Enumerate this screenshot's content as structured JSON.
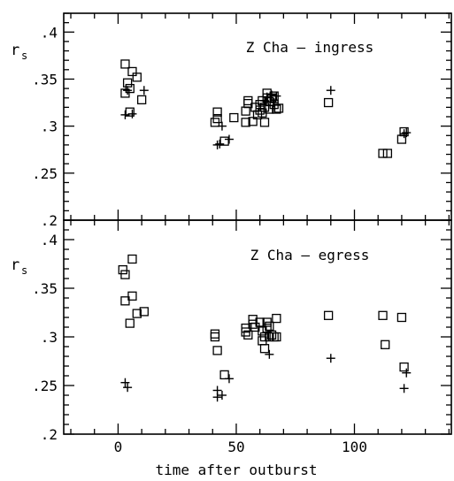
{
  "chart_data": {
    "type": "scatter",
    "xlabel": "time after outburst",
    "x_ticks": [
      "0",
      "50",
      "100"
    ],
    "xlim": [
      -23,
      141
    ],
    "shared_x": true,
    "panels": [
      {
        "title": "Z Cha – ingress",
        "ylabel": "r",
        "ylabel_sub": "s",
        "ylim": [
          0.2,
          0.42
        ],
        "y_ticks": [
          ".2",
          ".25",
          ".3",
          ".35",
          ".4"
        ],
        "series": [
          {
            "marker": "square",
            "points": [
              [
                3,
                0.366
              ],
              [
                3,
                0.335
              ],
              [
                4,
                0.346
              ],
              [
                5,
                0.315
              ],
              [
                5,
                0.34
              ],
              [
                6,
                0.358
              ],
              [
                8,
                0.352
              ],
              [
                10,
                0.328
              ],
              [
                41,
                0.304
              ],
              [
                42,
                0.315
              ],
              [
                42,
                0.308
              ],
              [
                45,
                0.284
              ],
              [
                49,
                0.309
              ],
              [
                54,
                0.304
              ],
              [
                54,
                0.316
              ],
              [
                55,
                0.324
              ],
              [
                55,
                0.327
              ],
              [
                57,
                0.305
              ],
              [
                58,
                0.32
              ],
              [
                59,
                0.312
              ],
              [
                60,
                0.317
              ],
              [
                60,
                0.323
              ],
              [
                61,
                0.314
              ],
              [
                61,
                0.327
              ],
              [
                62,
                0.304
              ],
              [
                62,
                0.32
              ],
              [
                63,
                0.33
              ],
              [
                63,
                0.335
              ],
              [
                64,
                0.318
              ],
              [
                64,
                0.326
              ],
              [
                65,
                0.33
              ],
              [
                66,
                0.323
              ],
              [
                66,
                0.332
              ],
              [
                67,
                0.318
              ],
              [
                68,
                0.319
              ],
              [
                89,
                0.325
              ],
              [
                112,
                0.271
              ],
              [
                114,
                0.271
              ],
              [
                120,
                0.286
              ],
              [
                121,
                0.294
              ]
            ]
          },
          {
            "marker": "plus",
            "points": [
              [
                3,
                0.312
              ],
              [
                4,
                0.338
              ],
              [
                6,
                0.313
              ],
              [
                11,
                0.338
              ],
              [
                42,
                0.28
              ],
              [
                43,
                0.281
              ],
              [
                44,
                0.3
              ],
              [
                47,
                0.286
              ],
              [
                62,
                0.327
              ],
              [
                63,
                0.331
              ],
              [
                65,
                0.333
              ],
              [
                66,
                0.325
              ],
              [
                67,
                0.332
              ],
              [
                90,
                0.338
              ],
              [
                121,
                0.292
              ],
              [
                122,
                0.293
              ]
            ]
          }
        ]
      },
      {
        "title": "Z Cha – egress",
        "ylabel": "r",
        "ylabel_sub": "s",
        "ylim": [
          0.2,
          0.42
        ],
        "y_ticks": [
          ".2",
          ".25",
          ".3",
          ".35",
          ".4"
        ],
        "series": [
          {
            "marker": "square",
            "points": [
              [
                2,
                0.369
              ],
              [
                3,
                0.337
              ],
              [
                3,
                0.364
              ],
              [
                5,
                0.314
              ],
              [
                6,
                0.342
              ],
              [
                6,
                0.38
              ],
              [
                8,
                0.324
              ],
              [
                11,
                0.326
              ],
              [
                41,
                0.303
              ],
              [
                41,
                0.3
              ],
              [
                42,
                0.286
              ],
              [
                45,
                0.261
              ],
              [
                54,
                0.305
              ],
              [
                54,
                0.309
              ],
              [
                55,
                0.302
              ],
              [
                57,
                0.318
              ],
              [
                57,
                0.313
              ],
              [
                58,
                0.31
              ],
              [
                60,
                0.315
              ],
              [
                61,
                0.296
              ],
              [
                61,
                0.306
              ],
              [
                62,
                0.288
              ],
              [
                62,
                0.3
              ],
              [
                63,
                0.309
              ],
              [
                63,
                0.315
              ],
              [
                64,
                0.3
              ],
              [
                64,
                0.311
              ],
              [
                65,
                0.302
              ],
              [
                66,
                0.3
              ],
              [
                67,
                0.319
              ],
              [
                67,
                0.3
              ],
              [
                89,
                0.322
              ],
              [
                112,
                0.322
              ],
              [
                113,
                0.292
              ],
              [
                120,
                0.32
              ],
              [
                121,
                0.269
              ]
            ]
          },
          {
            "marker": "plus",
            "points": [
              [
                3,
                0.253
              ],
              [
                4,
                0.248
              ],
              [
                42,
                0.245
              ],
              [
                42,
                0.238
              ],
              [
                44,
                0.24
              ],
              [
                47,
                0.257
              ],
              [
                64,
                0.282
              ],
              [
                90,
                0.278
              ],
              [
                121,
                0.247
              ],
              [
                122,
                0.263
              ]
            ]
          }
        ]
      }
    ]
  }
}
